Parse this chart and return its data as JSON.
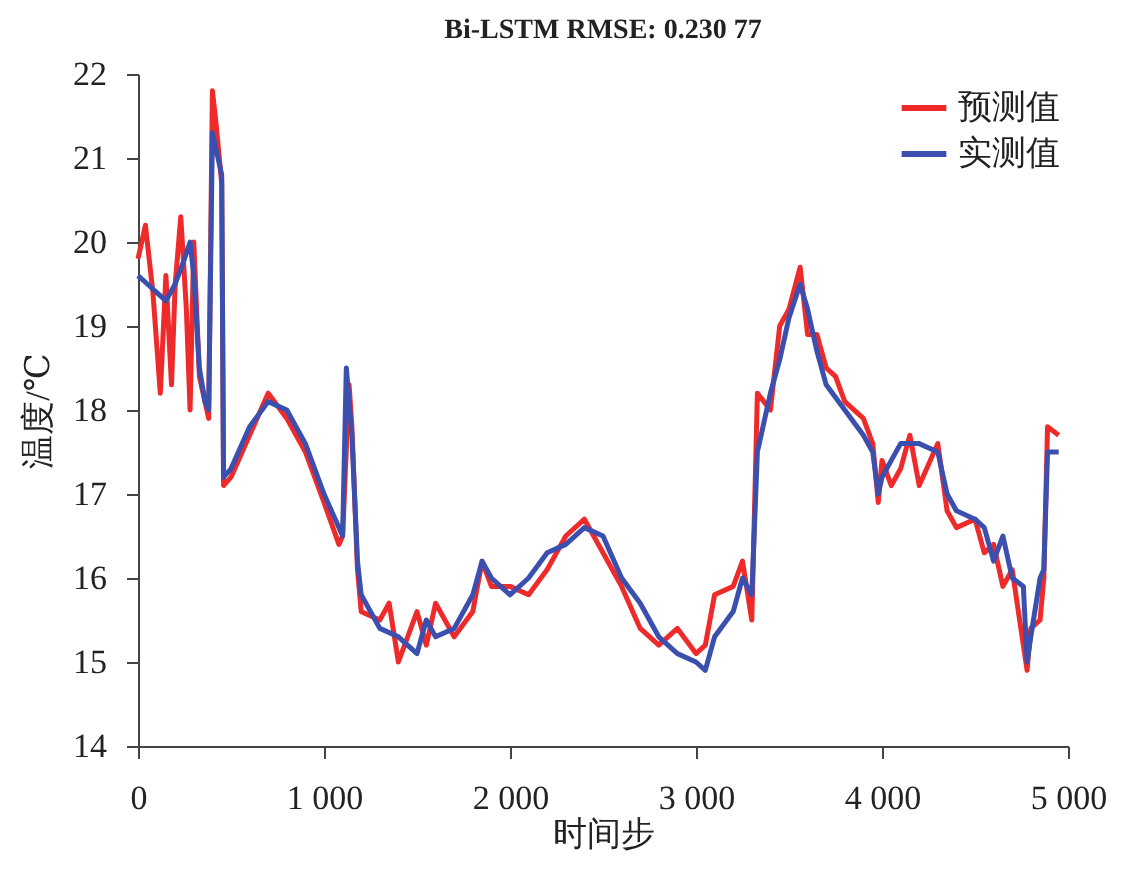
{
  "chart_data": {
    "type": "line",
    "title": "Bi-LSTM RMSE: 0.230 77",
    "xlabel": "时间步",
    "ylabel": "温度/℃",
    "xlim": [
      0,
      5000
    ],
    "xticks": [
      0,
      {
        "value": 1000,
        "label": "1 000"
      },
      {
        "value": 2000,
        "label": "2 000"
      },
      {
        "value": 3000,
        "label": "3 000"
      },
      {
        "value": 4000,
        "label": "4 000"
      },
      {
        "value": 5000,
        "label": "5 000"
      }
    ],
    "ylim": [
      14,
      22
    ],
    "yticks": [
      14,
      15,
      16,
      17,
      18,
      19,
      20,
      21,
      22
    ],
    "grid": false,
    "legend": "top right",
    "line_style": "solid",
    "marker": "none",
    "series": [
      {
        "name": "预测值",
        "color": "#ee2a2a",
        "x": [
          0,
          40,
          80,
          120,
          150,
          180,
          200,
          230,
          260,
          280,
          300,
          330,
          360,
          380,
          400,
          420,
          450,
          460,
          500,
          600,
          700,
          800,
          900,
          1000,
          1080,
          1100,
          1135,
          1150,
          1180,
          1200,
          1300,
          1350,
          1400,
          1500,
          1550,
          1600,
          1700,
          1800,
          1850,
          1900,
          2000,
          2100,
          2200,
          2300,
          2400,
          2500,
          2600,
          2700,
          2800,
          2900,
          3000,
          3050,
          3100,
          3200,
          3250,
          3300,
          3330,
          3400,
          3450,
          3500,
          3560,
          3600,
          3650,
          3700,
          3750,
          3800,
          3900,
          3950,
          3980,
          4000,
          4050,
          4100,
          4150,
          4200,
          4300,
          4350,
          4400,
          4500,
          4550,
          4600,
          4650,
          4700,
          4760,
          4780,
          4800,
          4850,
          4870,
          4890,
          4950
        ],
        "values": [
          19.8,
          20.2,
          19.4,
          18.2,
          19.6,
          18.3,
          19.5,
          20.3,
          19.2,
          18.0,
          20.0,
          18.4,
          18.1,
          17.9,
          21.8,
          21.4,
          20.7,
          17.1,
          17.2,
          17.7,
          18.2,
          17.9,
          17.5,
          16.9,
          16.4,
          16.5,
          18.3,
          17.8,
          16.1,
          15.6,
          15.5,
          15.7,
          15.0,
          15.6,
          15.2,
          15.7,
          15.3,
          15.6,
          16.2,
          15.9,
          15.9,
          15.8,
          16.1,
          16.5,
          16.7,
          16.3,
          15.9,
          15.4,
          15.2,
          15.4,
          15.1,
          15.2,
          15.8,
          15.9,
          16.2,
          15.5,
          18.2,
          18.0,
          19.0,
          19.2,
          19.7,
          18.9,
          18.9,
          18.5,
          18.4,
          18.1,
          17.9,
          17.6,
          16.9,
          17.4,
          17.1,
          17.3,
          17.7,
          17.1,
          17.6,
          16.8,
          16.6,
          16.7,
          16.3,
          16.4,
          15.9,
          16.1,
          15.2,
          14.9,
          15.4,
          15.5,
          16.0,
          17.8,
          17.7
        ]
      },
      {
        "name": "实测值",
        "color": "#3b4fae",
        "x": [
          0,
          50,
          100,
          150,
          200,
          250,
          280,
          300,
          330,
          360,
          380,
          400,
          430,
          450,
          460,
          500,
          600,
          700,
          800,
          900,
          1000,
          1080,
          1100,
          1120,
          1150,
          1180,
          1200,
          1300,
          1400,
          1500,
          1550,
          1600,
          1700,
          1800,
          1850,
          1900,
          2000,
          2100,
          2200,
          2300,
          2400,
          2500,
          2600,
          2700,
          2800,
          2900,
          3000,
          3050,
          3100,
          3200,
          3250,
          3300,
          3330,
          3400,
          3450,
          3500,
          3560,
          3600,
          3650,
          3700,
          3800,
          3900,
          3950,
          3980,
          4000,
          4050,
          4100,
          4200,
          4300,
          4350,
          4400,
          4500,
          4550,
          4600,
          4650,
          4700,
          4760,
          4780,
          4800,
          4850,
          4870,
          4890,
          4950
        ],
        "values": [
          19.6,
          19.5,
          19.4,
          19.3,
          19.5,
          19.8,
          20.0,
          19.6,
          18.5,
          18.1,
          18.0,
          21.3,
          21.0,
          20.8,
          17.2,
          17.3,
          17.8,
          18.1,
          18.0,
          17.6,
          17.0,
          16.6,
          16.5,
          18.5,
          17.7,
          16.2,
          15.8,
          15.4,
          15.3,
          15.1,
          15.5,
          15.3,
          15.4,
          15.8,
          16.2,
          16.0,
          15.8,
          16.0,
          16.3,
          16.4,
          16.6,
          16.5,
          16.0,
          15.7,
          15.3,
          15.1,
          15.0,
          14.9,
          15.3,
          15.6,
          16.0,
          15.8,
          17.5,
          18.2,
          18.6,
          19.1,
          19.5,
          19.2,
          18.7,
          18.3,
          18.0,
          17.7,
          17.5,
          17.0,
          17.2,
          17.4,
          17.6,
          17.6,
          17.5,
          17.0,
          16.8,
          16.7,
          16.6,
          16.2,
          16.5,
          16.0,
          15.9,
          15.0,
          15.3,
          16.0,
          16.1,
          17.5,
          17.5
        ]
      }
    ]
  }
}
